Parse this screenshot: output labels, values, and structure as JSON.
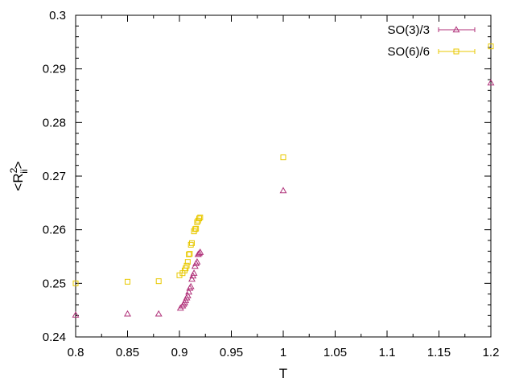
{
  "chart_data": {
    "type": "scatter",
    "title": "",
    "xlabel": "T",
    "ylabel": {
      "base": "<R",
      "sup": "2",
      "sub": "ii",
      "close": ">"
    },
    "xlim": [
      0.8,
      1.2
    ],
    "ylim": [
      0.24,
      0.3
    ],
    "x_ticks": [
      0.8,
      0.85,
      0.9,
      0.95,
      1.0,
      1.05,
      1.1,
      1.15,
      1.2
    ],
    "x_tick_labels": [
      "0.8",
      "0.85",
      "0.9",
      "0.95",
      "1",
      "1.05",
      "1.1",
      "1.15",
      "1.2"
    ],
    "y_ticks": [
      0.24,
      0.25,
      0.26,
      0.27,
      0.28,
      0.29,
      0.3
    ],
    "y_tick_labels": [
      "0.24",
      "0.25",
      "0.26",
      "0.27",
      "0.28",
      "0.29",
      "0.3"
    ],
    "grid": false,
    "legend_position": "top-right",
    "series": [
      {
        "name": "SO(3)/3",
        "color": "#b0327a",
        "marker": "triangle",
        "points": [
          [
            0.8,
            0.2441
          ],
          [
            0.85,
            0.2443
          ],
          [
            0.88,
            0.2443
          ],
          [
            0.901,
            0.2454
          ],
          [
            0.903,
            0.2458
          ],
          [
            0.904,
            0.2461
          ],
          [
            0.905,
            0.2464
          ],
          [
            0.906,
            0.2468
          ],
          [
            0.907,
            0.2473
          ],
          [
            0.908,
            0.2477
          ],
          [
            0.909,
            0.2484
          ],
          [
            0.91,
            0.2491
          ],
          [
            0.911,
            0.2494
          ],
          [
            0.912,
            0.2508
          ],
          [
            0.913,
            0.2514
          ],
          [
            0.914,
            0.2519
          ],
          [
            0.915,
            0.2532
          ],
          [
            0.916,
            0.2537
          ],
          [
            0.917,
            0.254
          ],
          [
            0.918,
            0.2554
          ],
          [
            0.919,
            0.2556
          ],
          [
            0.92,
            0.2558
          ],
          [
            1.0,
            0.2673
          ],
          [
            1.2,
            0.2874
          ]
        ]
      },
      {
        "name": "SO(6)/6",
        "color": "#e8c800",
        "marker": "square",
        "points": [
          [
            0.8,
            0.25
          ],
          [
            0.85,
            0.2503
          ],
          [
            0.88,
            0.2504
          ],
          [
            0.9,
            0.2515
          ],
          [
            0.903,
            0.2519
          ],
          [
            0.905,
            0.2524
          ],
          [
            0.906,
            0.2528
          ],
          [
            0.907,
            0.2533
          ],
          [
            0.908,
            0.254
          ],
          [
            0.909,
            0.2554
          ],
          [
            0.91,
            0.2555
          ],
          [
            0.911,
            0.2572
          ],
          [
            0.912,
            0.2575
          ],
          [
            0.914,
            0.2597
          ],
          [
            0.915,
            0.2601
          ],
          [
            0.916,
            0.2602
          ],
          [
            0.917,
            0.2614
          ],
          [
            0.918,
            0.2617
          ],
          [
            0.919,
            0.2621
          ],
          [
            0.92,
            0.2623
          ],
          [
            1.0,
            0.2735
          ],
          [
            1.2,
            0.2942
          ]
        ]
      }
    ]
  }
}
